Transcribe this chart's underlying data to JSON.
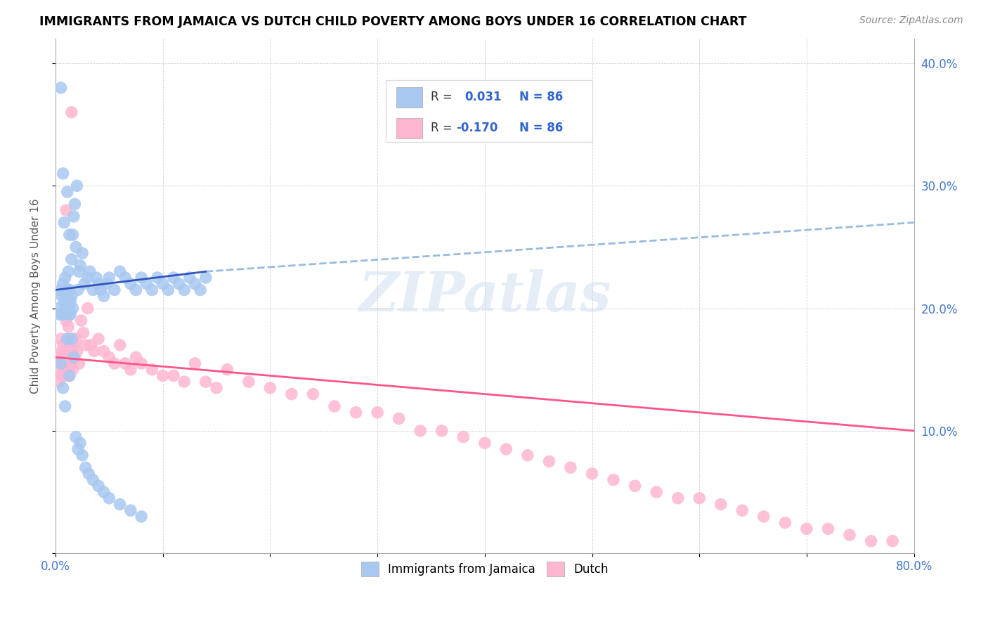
{
  "title": "IMMIGRANTS FROM JAMAICA VS DUTCH CHILD POVERTY AMONG BOYS UNDER 16 CORRELATION CHART",
  "source": "Source: ZipAtlas.com",
  "ylabel": "Child Poverty Among Boys Under 16",
  "xlim": [
    0.0,
    0.8
  ],
  "ylim": [
    0.0,
    0.42
  ],
  "xticks": [
    0.0,
    0.1,
    0.2,
    0.3,
    0.4,
    0.5,
    0.6,
    0.7,
    0.8
  ],
  "xticklabels": [
    "0.0%",
    "",
    "",
    "",
    "",
    "",
    "",
    "",
    "80.0%"
  ],
  "yticks": [
    0.0,
    0.1,
    0.2,
    0.3,
    0.4
  ],
  "yticklabels_right": [
    "",
    "10.0%",
    "20.0%",
    "30.0%",
    "40.0%"
  ],
  "legend_r_jamaica": "0.031",
  "legend_r_dutch": "-0.170",
  "legend_n": "86",
  "color_jamaica": "#a8c8f0",
  "color_dutch": "#ffb6d0",
  "color_line_jamaica": "#3355bb",
  "color_line_dutch": "#ff5588",
  "color_dashed": "#99bbdd",
  "watermark": "ZIPatlas",
  "jamaica_x": [
    0.003,
    0.004,
    0.005,
    0.005,
    0.006,
    0.006,
    0.007,
    0.007,
    0.008,
    0.008,
    0.009,
    0.009,
    0.01,
    0.01,
    0.01,
    0.011,
    0.011,
    0.011,
    0.012,
    0.012,
    0.012,
    0.013,
    0.013,
    0.013,
    0.014,
    0.014,
    0.015,
    0.015,
    0.016,
    0.016,
    0.017,
    0.018,
    0.019,
    0.02,
    0.021,
    0.022,
    0.023,
    0.025,
    0.027,
    0.03,
    0.032,
    0.035,
    0.038,
    0.04,
    0.042,
    0.045,
    0.048,
    0.05,
    0.055,
    0.06,
    0.065,
    0.07,
    0.075,
    0.08,
    0.085,
    0.09,
    0.095,
    0.1,
    0.105,
    0.11,
    0.115,
    0.12,
    0.125,
    0.13,
    0.135,
    0.14,
    0.005,
    0.007,
    0.009,
    0.011,
    0.013,
    0.015,
    0.017,
    0.019,
    0.021,
    0.023,
    0.025,
    0.028,
    0.031,
    0.035,
    0.04,
    0.045,
    0.05,
    0.06,
    0.07,
    0.08
  ],
  "jamaica_y": [
    0.2,
    0.195,
    0.215,
    0.38,
    0.21,
    0.195,
    0.31,
    0.22,
    0.205,
    0.27,
    0.225,
    0.195,
    0.21,
    0.2,
    0.215,
    0.295,
    0.205,
    0.21,
    0.23,
    0.215,
    0.2,
    0.26,
    0.195,
    0.215,
    0.205,
    0.195,
    0.24,
    0.21,
    0.26,
    0.2,
    0.275,
    0.285,
    0.25,
    0.3,
    0.215,
    0.23,
    0.235,
    0.245,
    0.22,
    0.225,
    0.23,
    0.215,
    0.225,
    0.22,
    0.215,
    0.21,
    0.22,
    0.225,
    0.215,
    0.23,
    0.225,
    0.22,
    0.215,
    0.225,
    0.22,
    0.215,
    0.225,
    0.22,
    0.215,
    0.225,
    0.22,
    0.215,
    0.225,
    0.22,
    0.215,
    0.225,
    0.155,
    0.135,
    0.12,
    0.175,
    0.145,
    0.175,
    0.16,
    0.095,
    0.085,
    0.09,
    0.08,
    0.07,
    0.065,
    0.06,
    0.055,
    0.05,
    0.045,
    0.04,
    0.035,
    0.03
  ],
  "dutch_x": [
    0.003,
    0.004,
    0.005,
    0.005,
    0.006,
    0.006,
    0.007,
    0.007,
    0.008,
    0.008,
    0.009,
    0.009,
    0.01,
    0.01,
    0.011,
    0.011,
    0.012,
    0.012,
    0.013,
    0.013,
    0.014,
    0.014,
    0.015,
    0.015,
    0.016,
    0.016,
    0.017,
    0.018,
    0.019,
    0.02,
    0.022,
    0.024,
    0.026,
    0.028,
    0.03,
    0.033,
    0.036,
    0.04,
    0.045,
    0.05,
    0.055,
    0.06,
    0.065,
    0.07,
    0.075,
    0.08,
    0.09,
    0.1,
    0.11,
    0.12,
    0.13,
    0.14,
    0.15,
    0.16,
    0.18,
    0.2,
    0.22,
    0.24,
    0.26,
    0.28,
    0.3,
    0.32,
    0.34,
    0.36,
    0.38,
    0.4,
    0.42,
    0.44,
    0.46,
    0.48,
    0.5,
    0.52,
    0.54,
    0.56,
    0.58,
    0.6,
    0.62,
    0.64,
    0.66,
    0.68,
    0.7,
    0.72,
    0.74,
    0.76,
    0.78,
    0.01
  ],
  "dutch_y": [
    0.14,
    0.16,
    0.15,
    0.175,
    0.165,
    0.145,
    0.17,
    0.155,
    0.195,
    0.15,
    0.165,
    0.145,
    0.16,
    0.19,
    0.155,
    0.175,
    0.15,
    0.185,
    0.165,
    0.145,
    0.155,
    0.17,
    0.36,
    0.165,
    0.15,
    0.175,
    0.17,
    0.16,
    0.175,
    0.165,
    0.155,
    0.19,
    0.18,
    0.17,
    0.2,
    0.17,
    0.165,
    0.175,
    0.165,
    0.16,
    0.155,
    0.17,
    0.155,
    0.15,
    0.16,
    0.155,
    0.15,
    0.145,
    0.145,
    0.14,
    0.155,
    0.14,
    0.135,
    0.15,
    0.14,
    0.135,
    0.13,
    0.13,
    0.12,
    0.115,
    0.115,
    0.11,
    0.1,
    0.1,
    0.095,
    0.09,
    0.085,
    0.08,
    0.075,
    0.07,
    0.065,
    0.06,
    0.055,
    0.05,
    0.045,
    0.045,
    0.04,
    0.035,
    0.03,
    0.025,
    0.02,
    0.02,
    0.015,
    0.01,
    0.01,
    0.28
  ],
  "jamaica_trend_x": [
    0.0,
    0.14
  ],
  "jamaica_trend_y": [
    0.215,
    0.23
  ],
  "dutch_trend_x": [
    0.0,
    0.8
  ],
  "dutch_trend_y": [
    0.16,
    0.1
  ],
  "dashed_trend_x": [
    0.14,
    0.8
  ],
  "dashed_trend_y": [
    0.23,
    0.27
  ]
}
